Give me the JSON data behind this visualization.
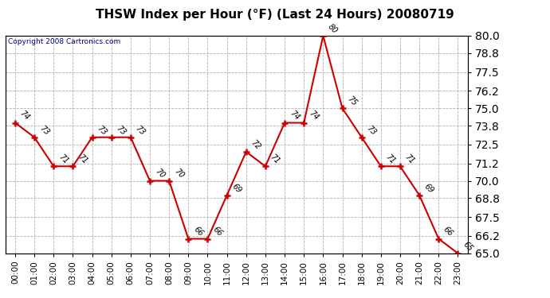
{
  "title": "THSW Index per Hour (°F) (Last 24 Hours) 20080719",
  "copyright": "Copyright 2008 Cartronics.com",
  "hours": [
    "00:00",
    "01:00",
    "02:00",
    "03:00",
    "04:00",
    "05:00",
    "06:00",
    "07:00",
    "08:00",
    "09:00",
    "10:00",
    "11:00",
    "12:00",
    "13:00",
    "14:00",
    "15:00",
    "16:00",
    "17:00",
    "18:00",
    "19:00",
    "20:00",
    "21:00",
    "22:00",
    "23:00"
  ],
  "x_indices": [
    0,
    1,
    2,
    3,
    4,
    5,
    6,
    7,
    8,
    9,
    10,
    11,
    12,
    13,
    14,
    15,
    16,
    17,
    18,
    19,
    20,
    21,
    22,
    23
  ],
  "y_values": [
    74,
    73,
    71,
    71,
    73,
    73,
    73,
    70,
    70,
    66,
    66,
    69,
    72,
    71,
    74,
    74,
    80,
    75,
    73,
    71,
    71,
    69,
    66,
    65
  ],
  "ylim": [
    65.0,
    80.0
  ],
  "right_ticks": [
    65.0,
    66.2,
    67.5,
    68.8,
    70.0,
    71.2,
    72.5,
    73.8,
    75.0,
    76.2,
    77.5,
    78.8,
    80.0
  ],
  "line_color": "#cc0000",
  "bg_color": "#ffffff",
  "grid_color": "#b0b0b0",
  "title_color": "#000000",
  "label_color": "#000000",
  "copyright_color": "#000080",
  "title_fontsize": 11,
  "tick_fontsize": 7.5,
  "annot_fontsize": 7,
  "copyright_fontsize": 6.5
}
